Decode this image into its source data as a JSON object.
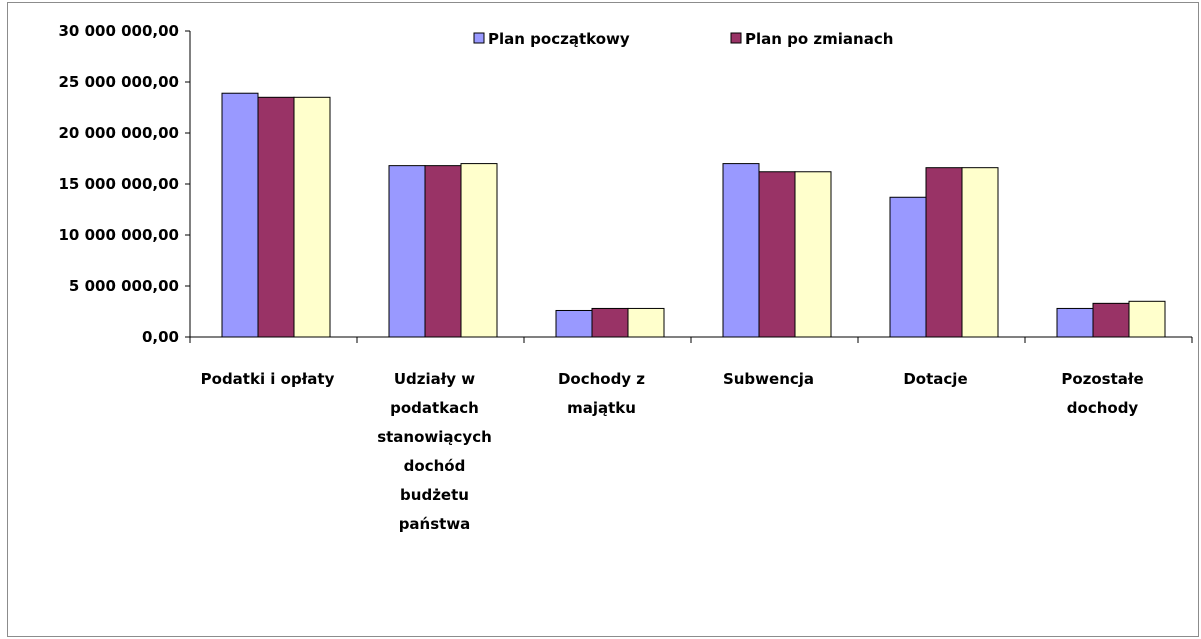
{
  "chart_data": {
    "type": "bar",
    "categories": [
      "Podatki i opłaty",
      "Udziały w podatkach stanowiących dochód budżetu państwa",
      "Dochody z majątku",
      "Subwencja",
      "Dotacje",
      "Pozostałe dochody"
    ],
    "category_label_lines": [
      [
        "Podatki i opłaty"
      ],
      [
        "Udziały w",
        "podatkach",
        "stanowiących",
        "dochód",
        "budżetu",
        "państwa"
      ],
      [
        "Dochody z",
        "majątku"
      ],
      [
        "Subwencja"
      ],
      [
        "Dotacje"
      ],
      [
        "Pozostałe",
        "dochody"
      ]
    ],
    "series": [
      {
        "name": "Plan początkowy",
        "color": "#9999ff",
        "values": [
          23900000,
          16800000,
          2600000,
          17000000,
          13700000,
          2800000
        ]
      },
      {
        "name": "Plan po zmianach",
        "color": "#993366",
        "values": [
          23500000,
          16800000,
          2800000,
          16200000,
          16600000,
          3300000
        ]
      },
      {
        "color": "#ffffcc",
        "values": [
          23500000,
          17000000,
          2800000,
          16200000,
          16600000,
          3500000
        ]
      }
    ],
    "yticks": [
      "0,00",
      "5 000 000,00",
      "10 000 000,00",
      "15 000 000,00",
      "20 000 000,00",
      "25 000 000,00",
      "30 000 000,00"
    ],
    "ylim": [
      0,
      30000000
    ],
    "legend_position": "top",
    "grid": false
  }
}
